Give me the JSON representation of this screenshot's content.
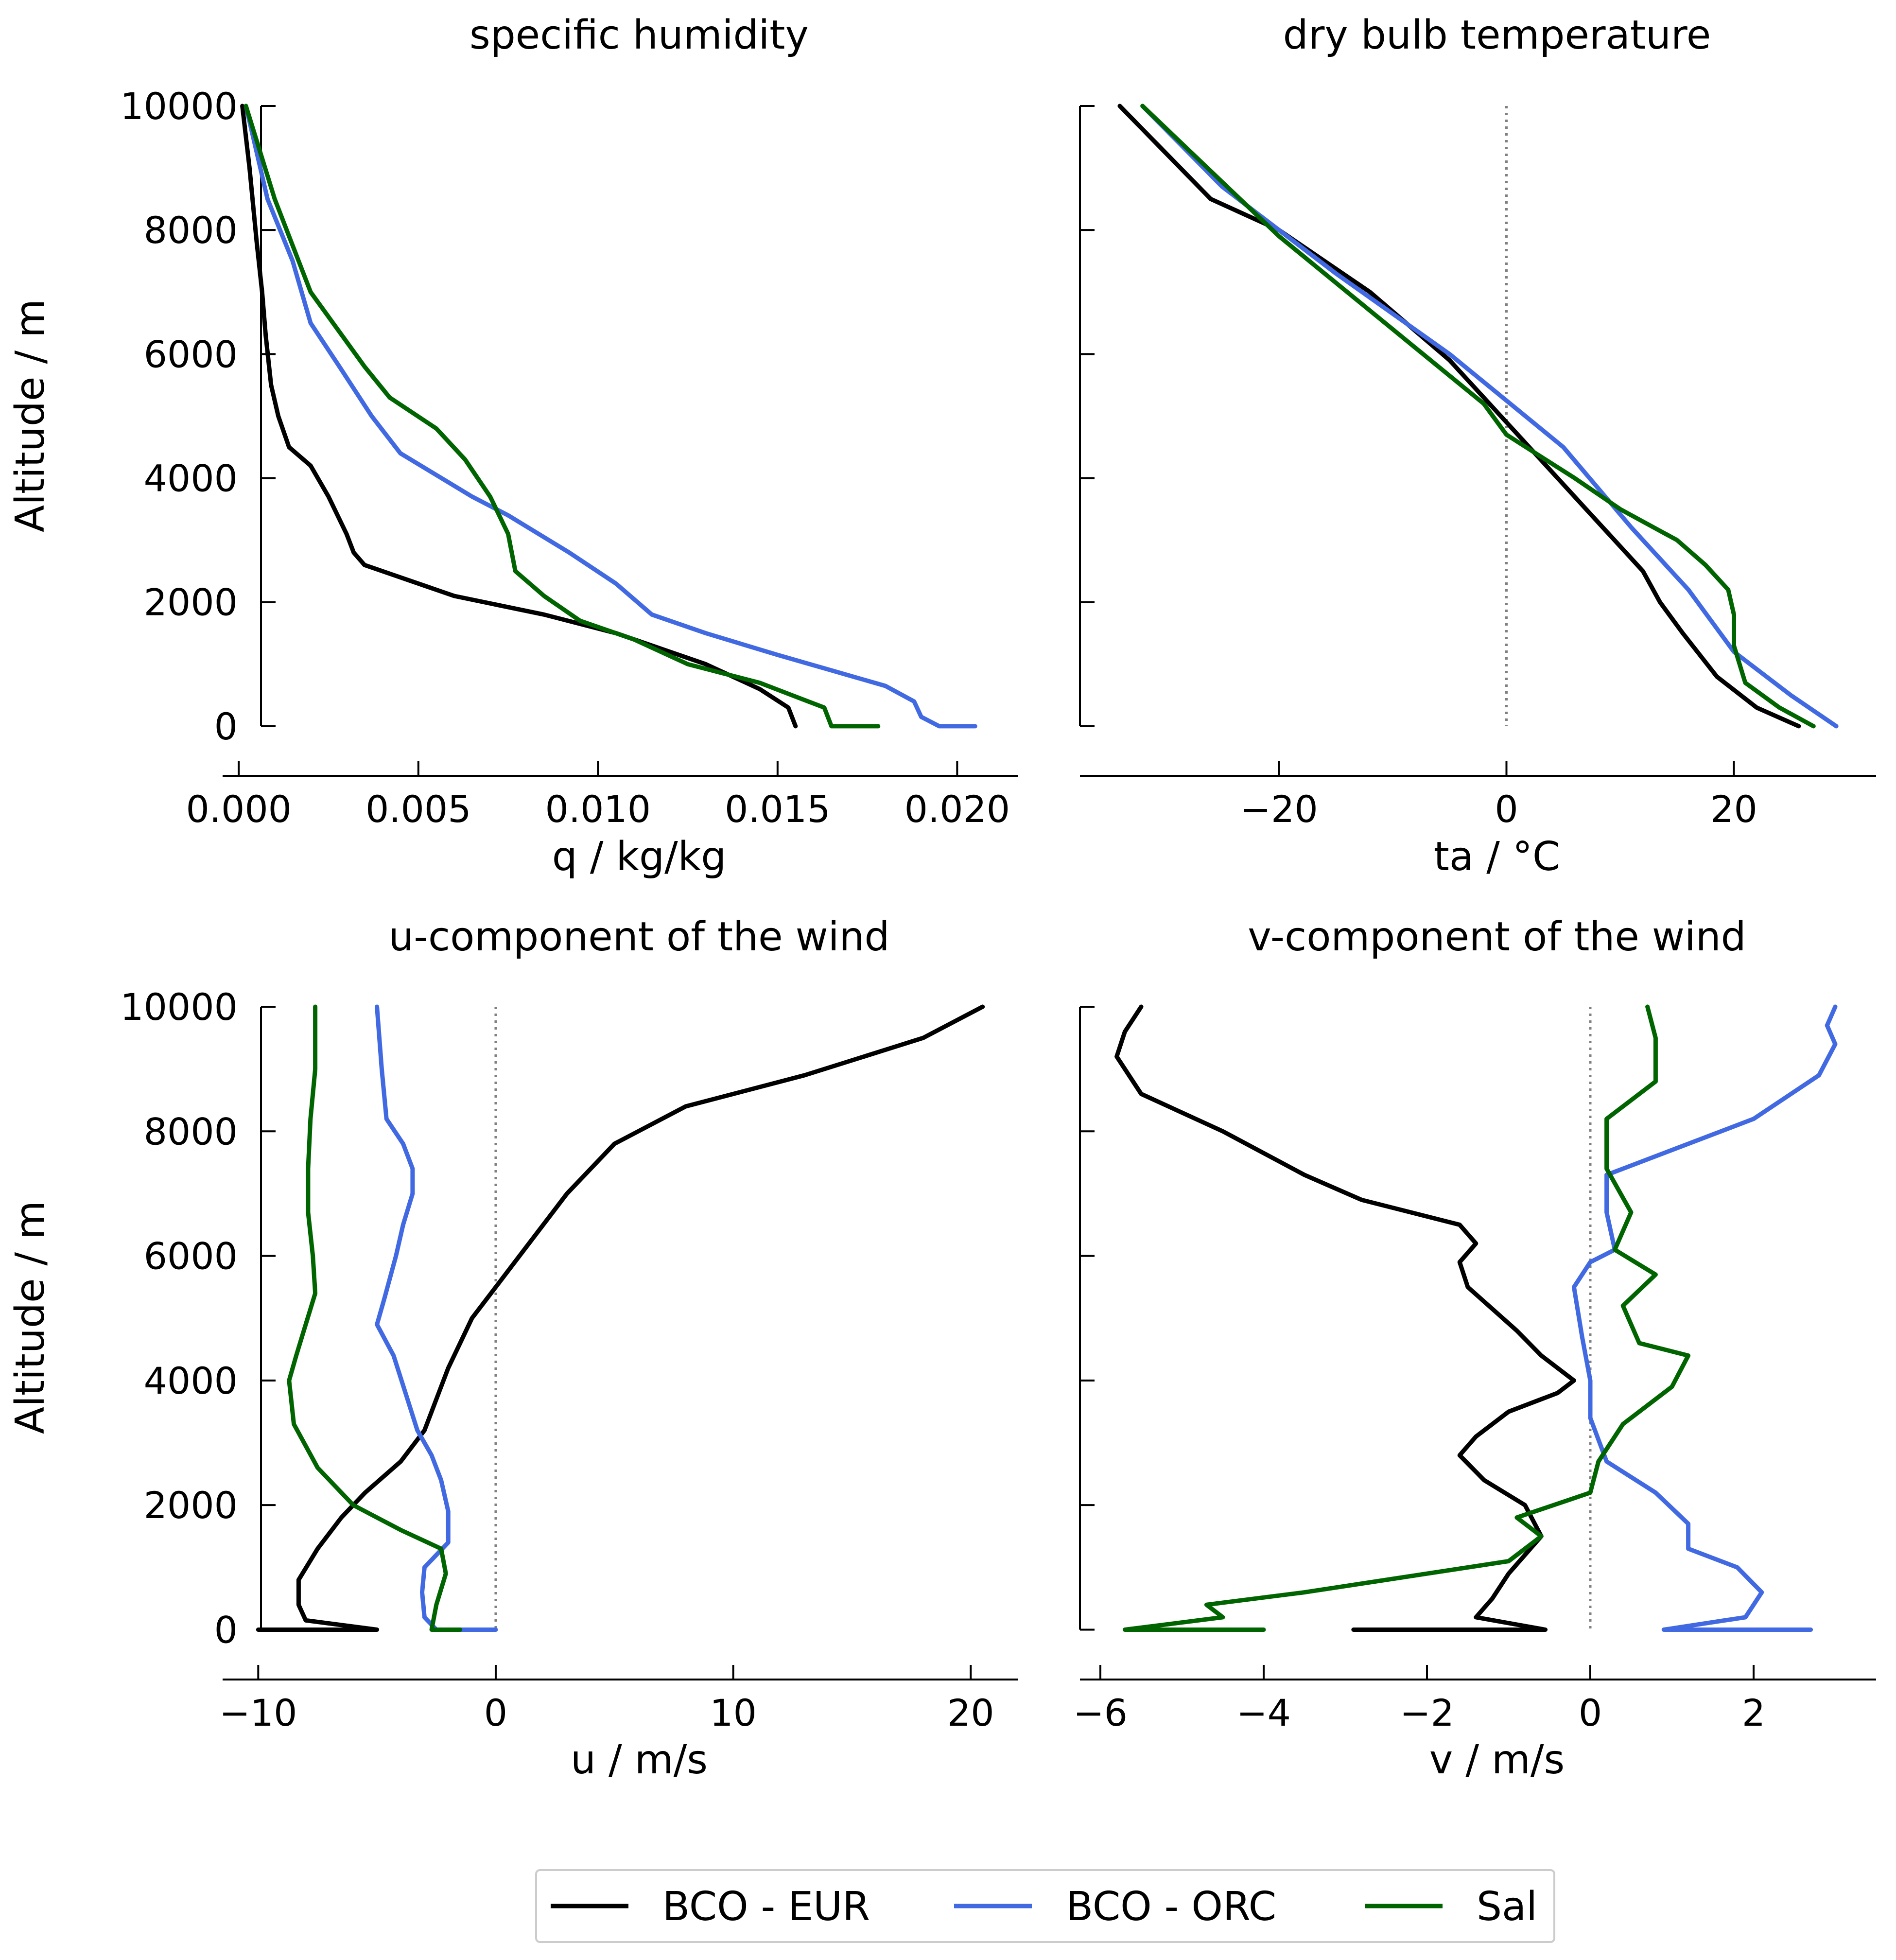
{
  "colors": {
    "BCO - EUR": "#000000",
    "BCO - ORC": "#4169e1",
    "Sal": "#006400",
    "zero_line": "#808080"
  },
  "legend": {
    "position": "bottom-center",
    "entries": [
      "BCO - EUR",
      "BCO - ORC",
      "Sal"
    ]
  },
  "chart_data": [
    {
      "type": "line",
      "title": "specific humidity",
      "xlabel": "q / kg/kg",
      "ylabel": "Altitude / m",
      "xlim": [
        -0.00045,
        0.0217
      ],
      "ylim": [
        -800,
        10000
      ],
      "xticks": [
        0.0,
        0.005,
        0.01,
        0.015,
        0.02
      ],
      "xticklabels": [
        "0.000",
        "0.005",
        "0.010",
        "0.015",
        "0.020"
      ],
      "yticks": [
        0,
        2000,
        4000,
        6000,
        8000,
        10000
      ],
      "yticklabels": [
        "0",
        "2000",
        "4000",
        "6000",
        "8000",
        "10000"
      ],
      "zero_line": false,
      "grid": false,
      "series": [
        {
          "name": "BCO - EUR",
          "x": [
            0.0155,
            0.0153,
            0.0145,
            0.013,
            0.0105,
            0.0085,
            0.006,
            0.0045,
            0.0035,
            0.0032,
            0.003,
            0.0025,
            0.002,
            0.0014,
            0.0011,
            0.0009,
            0.00075,
            0.00065,
            0.0005,
            0.0003,
            0.0001
          ],
          "y": [
            0,
            300,
            600,
            1000,
            1500,
            1800,
            2100,
            2400,
            2600,
            2800,
            3100,
            3700,
            4200,
            4500,
            5000,
            5500,
            6300,
            7000,
            7800,
            9000,
            10000
          ]
        },
        {
          "name": "BCO - ORC",
          "x": [
            0.0205,
            0.0195,
            0.019,
            0.0188,
            0.018,
            0.0165,
            0.015,
            0.013,
            0.0115,
            0.0105,
            0.0092,
            0.0075,
            0.0065,
            0.0045,
            0.0037,
            0.0028,
            0.002,
            0.0015,
            0.0008,
            0.0002
          ],
          "y": [
            0,
            0,
            150,
            400,
            650,
            900,
            1150,
            1500,
            1800,
            2300,
            2800,
            3400,
            3700,
            4400,
            5000,
            5800,
            6500,
            7500,
            8500,
            10000
          ]
        },
        {
          "name": "Sal",
          "x": [
            0.0178,
            0.0165,
            0.0163,
            0.0145,
            0.0125,
            0.011,
            0.0095,
            0.0085,
            0.0077,
            0.0075,
            0.007,
            0.0063,
            0.0055,
            0.0042,
            0.0035,
            0.002,
            0.001,
            0.0002
          ],
          "y": [
            0,
            0,
            300,
            700,
            1000,
            1400,
            1700,
            2100,
            2500,
            3100,
            3700,
            4300,
            4800,
            5300,
            5800,
            7000,
            8500,
            10000
          ]
        }
      ]
    },
    {
      "type": "line",
      "title": "dry bulb temperature",
      "xlabel": "ta / °C",
      "ylabel": "",
      "xlim": [
        -37.5,
        32.5
      ],
      "ylim": [
        -800,
        10000
      ],
      "xticks": [
        -20,
        0,
        20
      ],
      "xticklabels": [
        "−20",
        "0",
        "20"
      ],
      "yticks": [
        0,
        2000,
        4000,
        6000,
        8000,
        10000
      ],
      "yticklabels": [],
      "zero_line": true,
      "grid": false,
      "series": [
        {
          "name": "BCO - EUR",
          "x": [
            25.7,
            22,
            18.5,
            15.5,
            13.5,
            12,
            7,
            1,
            -5,
            -12,
            -20,
            -26,
            -34
          ],
          "y": [
            0,
            300,
            800,
            1500,
            2000,
            2500,
            3500,
            4700,
            5900,
            7000,
            8000,
            8500,
            10000
          ]
        },
        {
          "name": "BCO - ORC",
          "x": [
            29,
            25,
            20,
            16,
            11,
            5,
            -5,
            -15,
            -25,
            -32
          ],
          "y": [
            0,
            500,
            1200,
            2200,
            3200,
            4500,
            6000,
            7300,
            8700,
            10000
          ]
        },
        {
          "name": "Sal",
          "x": [
            27,
            24,
            21,
            20,
            20,
            19.5,
            17.5,
            15,
            10,
            6,
            0,
            -2,
            -10,
            -20,
            -32
          ],
          "y": [
            0,
            300,
            700,
            1300,
            1800,
            2200,
            2600,
            3000,
            3500,
            4000,
            4700,
            5200,
            6400,
            7900,
            10000
          ]
        }
      ]
    },
    {
      "type": "line",
      "title": "u-component of the wind",
      "xlabel": "u / m/s",
      "ylabel": "Altitude / m",
      "xlim": [
        -11.5,
        22
      ],
      "ylim": [
        -800,
        10000
      ],
      "xticks": [
        -10,
        0,
        10,
        20
      ],
      "xticklabels": [
        "−10",
        "0",
        "10",
        "20"
      ],
      "yticks": [
        0,
        2000,
        4000,
        6000,
        8000,
        10000
      ],
      "yticklabels": [
        "0",
        "2000",
        "4000",
        "6000",
        "8000",
        "10000"
      ],
      "zero_line": true,
      "grid": false,
      "series": [
        {
          "name": "BCO - EUR",
          "x": [
            -10,
            -5,
            -8,
            -8.3,
            -8.3,
            -7.5,
            -6.5,
            -5.5,
            -4,
            -3,
            -2.5,
            -2,
            -1.5,
            -1,
            0,
            1,
            3,
            4,
            5,
            6,
            8,
            13,
            18,
            20.5
          ],
          "y": [
            0,
            0,
            150,
            400,
            800,
            1300,
            1800,
            2200,
            2700,
            3200,
            3700,
            4200,
            4600,
            5000,
            5500,
            6000,
            7000,
            7400,
            7800,
            8000,
            8400,
            8900,
            9500,
            10000
          ]
        },
        {
          "name": "BCO - ORC",
          "x": [
            0,
            -2.5,
            -3,
            -3.1,
            -3,
            -2,
            -2,
            -2.3,
            -2.7,
            -3.3,
            -3.8,
            -4.3,
            -5,
            -4.7,
            -4.2,
            -3.9,
            -3.5,
            -3.5,
            -3.9,
            -4.6,
            -4.8,
            -5
          ],
          "y": [
            0,
            0,
            200,
            600,
            1000,
            1400,
            1900,
            2400,
            2800,
            3200,
            3800,
            4400,
            4900,
            5300,
            6000,
            6500,
            7000,
            7400,
            7800,
            8200,
            9000,
            10000
          ]
        },
        {
          "name": "Sal",
          "x": [
            -1.5,
            -2.7,
            -2.5,
            -2.1,
            -2.3,
            -4,
            -6,
            -7.5,
            -8.5,
            -8.7,
            -8.4,
            -8,
            -7.6,
            -7.7,
            -7.9,
            -7.9,
            -7.8,
            -7.6,
            -7.6
          ],
          "y": [
            0,
            0,
            400,
            900,
            1300,
            1600,
            2000,
            2600,
            3300,
            4000,
            4400,
            4900,
            5400,
            6000,
            6700,
            7400,
            8200,
            9000,
            10000
          ]
        }
      ]
    },
    {
      "type": "line",
      "title": "v-component of the wind",
      "xlabel": "v / m/s",
      "ylabel": "",
      "xlim": [
        -6.25,
        3.5
      ],
      "ylim": [
        -800,
        10000
      ],
      "xticks": [
        -6,
        -4,
        -2,
        0,
        2
      ],
      "xticklabels": [
        "−6",
        "−4",
        "−2",
        "0",
        "2"
      ],
      "yticks": [
        0,
        2000,
        4000,
        6000,
        8000,
        10000
      ],
      "yticklabels": [],
      "zero_line": true,
      "grid": false,
      "series": [
        {
          "name": "BCO - EUR",
          "x": [
            -2.9,
            -0.55,
            -1.4,
            -1.2,
            -1,
            -0.6,
            -0.8,
            -1.3,
            -1.6,
            -1.4,
            -1,
            -0.4,
            -0.2,
            -0.6,
            -0.9,
            -1.5,
            -1.6,
            -1.4,
            -1.6,
            -2.8,
            -3.5,
            -4.5,
            -5.5,
            -5.8,
            -5.7,
            -5.5
          ],
          "y": [
            0,
            0,
            200,
            500,
            900,
            1500,
            2000,
            2400,
            2800,
            3100,
            3500,
            3800,
            4000,
            4400,
            4800,
            5500,
            5900,
            6200,
            6500,
            6900,
            7300,
            8000,
            8600,
            9200,
            9600,
            10000
          ]
        },
        {
          "name": "BCO - ORC",
          "x": [
            2.7,
            0.9,
            1.9,
            2.1,
            1.8,
            1.2,
            1.2,
            0.8,
            0.2,
            0,
            0,
            -0.1,
            -0.2,
            0,
            0.3,
            0.2,
            0.2,
            0.4,
            2,
            2.8,
            3,
            2.9,
            3
          ],
          "y": [
            0,
            0,
            200,
            600,
            1000,
            1300,
            1700,
            2200,
            2700,
            3400,
            4000,
            4700,
            5500,
            5900,
            6100,
            6700,
            7300,
            7400,
            8200,
            8900,
            9400,
            9700,
            10000
          ]
        },
        {
          "name": "Sal",
          "x": [
            -4,
            -5.7,
            -4.5,
            -4.7,
            -3.5,
            -2.5,
            -1,
            -0.6,
            -0.9,
            0,
            0.1,
            0.4,
            1,
            1.2,
            0.6,
            0.4,
            0.8,
            0.3,
            0.5,
            0.2,
            0.2,
            0.8,
            0.8,
            0.7
          ],
          "y": [
            0,
            0,
            200,
            400,
            600,
            800,
            1100,
            1500,
            1800,
            2200,
            2700,
            3300,
            3900,
            4400,
            4600,
            5200,
            5700,
            6100,
            6700,
            7400,
            8200,
            8800,
            9500,
            10000
          ]
        }
      ]
    }
  ]
}
